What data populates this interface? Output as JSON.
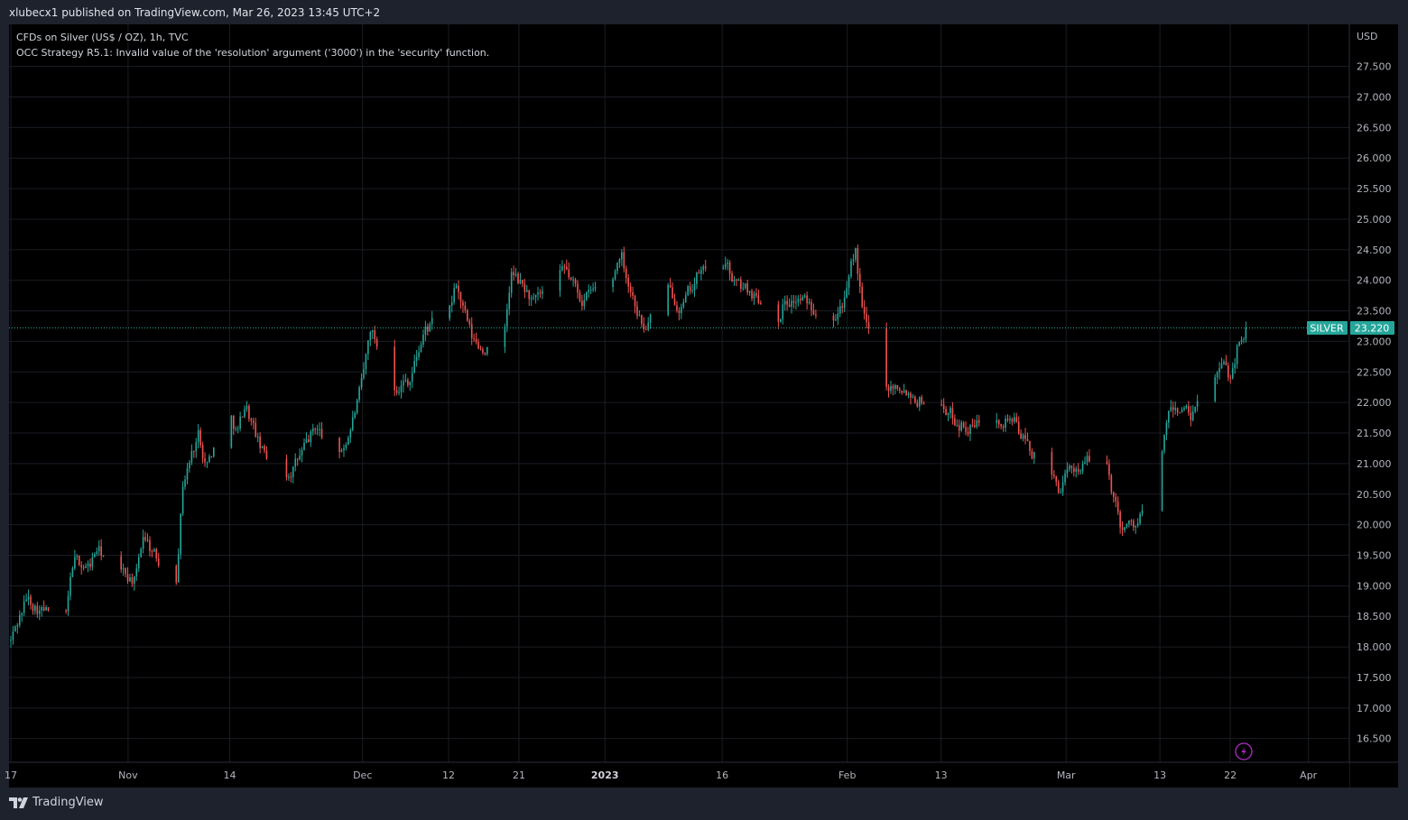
{
  "header": {
    "published_by": "xlubecx1 published on TradingView.com, Mar 26, 2023 13:45 UTC+2"
  },
  "legend": {
    "symbol_line": "CFDs on Silver (US$ / OZ), 1h, TVC",
    "error_line": "OCC Strategy R5.1: Invalid value of the 'resolution' argument ('3000') in the 'security' function."
  },
  "footer": {
    "brand": "TradingView"
  },
  "colors": {
    "up": "#26a69a",
    "down": "#ef5350",
    "grid": "#1a1d24",
    "axis_text": "#b2b5be",
    "price_tag": "#26a69a",
    "replay_icon": "#9c27b0"
  },
  "chart_data": {
    "type": "candlestick",
    "symbol": "SILVER",
    "currency": "USD",
    "interval": "1h",
    "last_price": 23.22,
    "last_price_label": "23.220",
    "y_range": [
      16.2,
      28.1
    ],
    "y_ticks": [
      "16.500",
      "17.000",
      "17.500",
      "18.000",
      "18.500",
      "19.000",
      "19.500",
      "20.000",
      "20.500",
      "21.000",
      "21.500",
      "22.000",
      "22.500",
      "23.000",
      "23.500",
      "24.000",
      "24.500",
      "25.000",
      "25.500",
      "26.000",
      "26.500",
      "27.000",
      "27.500"
    ],
    "x_range": [
      "2022-10-17",
      "2023-04-06"
    ],
    "x_ticks": [
      {
        "date": "2022-10-17",
        "label": "17"
      },
      {
        "date": "2022-11-01",
        "label": "Nov"
      },
      {
        "date": "2022-11-14",
        "label": "14"
      },
      {
        "date": "2022-12-01",
        "label": "Dec"
      },
      {
        "date": "2022-12-12",
        "label": "12"
      },
      {
        "date": "2022-12-21",
        "label": "21"
      },
      {
        "date": "2023-01-01",
        "label": "2023"
      },
      {
        "date": "2023-01-16",
        "label": "16"
      },
      {
        "date": "2023-02-01",
        "label": "Feb"
      },
      {
        "date": "2023-02-13",
        "label": "13"
      },
      {
        "date": "2023-03-01",
        "label": "Mar"
      },
      {
        "date": "2023-03-13",
        "label": "13"
      },
      {
        "date": "2023-03-22",
        "label": "22"
      },
      {
        "date": "2023-04-01",
        "label": "Apr"
      }
    ],
    "grid": true,
    "price_path": [
      {
        "date": "2022-10-17",
        "price": 18.1
      },
      {
        "date": "2022-10-19",
        "price": 18.8
      },
      {
        "date": "2022-10-21",
        "price": 18.6
      },
      {
        "date": "2022-10-24",
        "price": 18.4
      },
      {
        "date": "2022-10-25",
        "price": 19.4
      },
      {
        "date": "2022-10-27",
        "price": 19.3
      },
      {
        "date": "2022-10-28",
        "price": 19.6
      },
      {
        "date": "2022-10-31",
        "price": 19.2
      },
      {
        "date": "2022-11-02",
        "price": 19.1
      },
      {
        "date": "2022-11-03",
        "price": 19.9
      },
      {
        "date": "2022-11-04",
        "price": 19.6
      },
      {
        "date": "2022-11-07",
        "price": 18.9
      },
      {
        "date": "2022-11-08",
        "price": 20.7
      },
      {
        "date": "2022-11-10",
        "price": 21.5
      },
      {
        "date": "2022-11-11",
        "price": 21.0
      },
      {
        "date": "2022-11-14",
        "price": 21.8
      },
      {
        "date": "2022-11-15",
        "price": 21.5
      },
      {
        "date": "2022-11-16",
        "price": 22.0
      },
      {
        "date": "2022-11-18",
        "price": 21.2
      },
      {
        "date": "2022-11-21",
        "price": 20.8
      },
      {
        "date": "2022-11-23",
        "price": 21.1
      },
      {
        "date": "2022-11-25",
        "price": 21.6
      },
      {
        "date": "2022-11-28",
        "price": 21.1
      },
      {
        "date": "2022-11-29",
        "price": 21.4
      },
      {
        "date": "2022-12-01",
        "price": 22.3
      },
      {
        "date": "2022-12-02",
        "price": 23.2
      },
      {
        "date": "2022-12-05",
        "price": 22.3
      },
      {
        "date": "2022-12-07",
        "price": 22.4
      },
      {
        "date": "2022-12-09",
        "price": 23.2
      },
      {
        "date": "2022-12-12",
        "price": 23.4
      },
      {
        "date": "2022-12-13",
        "price": 23.9
      },
      {
        "date": "2022-12-15",
        "price": 23.0
      },
      {
        "date": "2022-12-16",
        "price": 22.9
      },
      {
        "date": "2022-12-19",
        "price": 22.9
      },
      {
        "date": "2022-12-20",
        "price": 24.1
      },
      {
        "date": "2022-12-22",
        "price": 23.8
      },
      {
        "date": "2022-12-23",
        "price": 23.6
      },
      {
        "date": "2022-12-27",
        "price": 24.1
      },
      {
        "date": "2022-12-29",
        "price": 23.7
      },
      {
        "date": "2023-01-02",
        "price": 24.0
      },
      {
        "date": "2023-01-03",
        "price": 24.5
      },
      {
        "date": "2023-01-04",
        "price": 24.0
      },
      {
        "date": "2023-01-06",
        "price": 23.2
      },
      {
        "date": "2023-01-09",
        "price": 23.8
      },
      {
        "date": "2023-01-11",
        "price": 23.6
      },
      {
        "date": "2023-01-13",
        "price": 24.1
      },
      {
        "date": "2023-01-16",
        "price": 24.3
      },
      {
        "date": "2023-01-18",
        "price": 23.9
      },
      {
        "date": "2023-01-20",
        "price": 23.8
      },
      {
        "date": "2023-01-23",
        "price": 23.4
      },
      {
        "date": "2023-01-24",
        "price": 23.7
      },
      {
        "date": "2023-01-26",
        "price": 23.7
      },
      {
        "date": "2023-01-27",
        "price": 23.6
      },
      {
        "date": "2023-01-30",
        "price": 23.5
      },
      {
        "date": "2023-02-01",
        "price": 23.8
      },
      {
        "date": "2023-02-02",
        "price": 24.5
      },
      {
        "date": "2023-02-03",
        "price": 23.4
      },
      {
        "date": "2023-02-06",
        "price": 22.3
      },
      {
        "date": "2023-02-08",
        "price": 22.3
      },
      {
        "date": "2023-02-10",
        "price": 22.1
      },
      {
        "date": "2023-02-13",
        "price": 22.0
      },
      {
        "date": "2023-02-15",
        "price": 21.7
      },
      {
        "date": "2023-02-17",
        "price": 21.6
      },
      {
        "date": "2023-02-20",
        "price": 21.8
      },
      {
        "date": "2023-02-22",
        "price": 21.8
      },
      {
        "date": "2023-02-24",
        "price": 21.3
      },
      {
        "date": "2023-02-27",
        "price": 20.8
      },
      {
        "date": "2023-02-28",
        "price": 20.6
      },
      {
        "date": "2023-03-02",
        "price": 20.9
      },
      {
        "date": "2023-03-03",
        "price": 21.0
      },
      {
        "date": "2023-03-06",
        "price": 21.1
      },
      {
        "date": "2023-03-07",
        "price": 20.5
      },
      {
        "date": "2023-03-08",
        "price": 20.0
      },
      {
        "date": "2023-03-10",
        "price": 20.0
      },
      {
        "date": "2023-03-13",
        "price": 20.8
      },
      {
        "date": "2023-03-14",
        "price": 21.8
      },
      {
        "date": "2023-03-16",
        "price": 21.9
      },
      {
        "date": "2023-03-17",
        "price": 21.7
      },
      {
        "date": "2023-03-20",
        "price": 22.4
      },
      {
        "date": "2023-03-21",
        "price": 22.6
      },
      {
        "date": "2023-03-22",
        "price": 22.4
      },
      {
        "date": "2023-03-23",
        "price": 23.0
      },
      {
        "date": "2023-03-24",
        "price": 23.22
      }
    ]
  }
}
